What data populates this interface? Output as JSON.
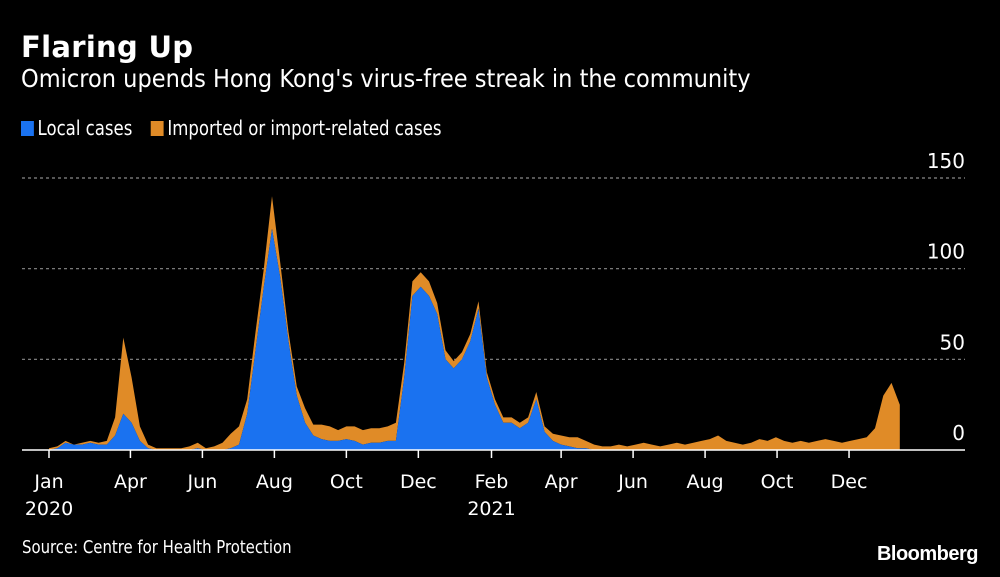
{
  "header": {
    "title": "Flaring Up",
    "subtitle": "Omicron upends Hong Kong's virus-free streak in the community"
  },
  "footer": {
    "source": "Source: Centre for Health Protection",
    "logo": "Bloomberg"
  },
  "colors": {
    "local": "#1a72f0",
    "imported": "#e08b27",
    "background": "#000000",
    "grid": "#8a8a8a"
  },
  "chart_data": {
    "type": "area",
    "stacked": true,
    "title": "Flaring Up",
    "subtitle": "Omicron upends Hong Kong's virus-free streak in the community",
    "x_start": "2020-01-23",
    "x_step_days": 7,
    "ylim": [
      0,
      150
    ],
    "yticks": [
      "0",
      "50",
      "100",
      "150"
    ],
    "ytick_values": [
      0,
      50,
      100,
      150
    ],
    "grid": true,
    "legend_position": "top-left",
    "xticks": [
      {
        "label": "Jan",
        "year": "2020",
        "day": 0
      },
      {
        "label": "Apr",
        "year": "",
        "day": 69
      },
      {
        "label": "Jun",
        "year": "",
        "day": 130
      },
      {
        "label": "Aug",
        "year": "",
        "day": 191
      },
      {
        "label": "Oct",
        "year": "",
        "day": 252
      },
      {
        "label": "Dec",
        "year": "",
        "day": 313
      },
      {
        "label": "Feb",
        "year": "2021",
        "day": 375
      },
      {
        "label": "Apr",
        "year": "",
        "day": 434
      },
      {
        "label": "Jun",
        "year": "",
        "day": 495
      },
      {
        "label": "Aug",
        "year": "",
        "day": 556
      },
      {
        "label": "Oct",
        "year": "",
        "day": 617
      },
      {
        "label": "Dec",
        "year": "",
        "day": 678
      }
    ],
    "series": [
      {
        "name": "Local cases",
        "values": [
          0,
          1,
          4,
          3,
          3,
          4,
          3,
          3,
          8,
          20,
          15,
          5,
          1,
          0,
          0,
          0,
          0,
          0,
          1,
          0,
          0,
          0,
          1,
          3,
          20,
          55,
          90,
          122,
          95,
          60,
          30,
          15,
          8,
          6,
          5,
          5,
          6,
          5,
          3,
          4,
          4,
          5,
          5,
          40,
          85,
          90,
          85,
          75,
          50,
          45,
          50,
          60,
          78,
          40,
          25,
          15,
          15,
          12,
          15,
          28,
          10,
          5,
          3,
          2,
          1,
          1,
          0,
          0,
          0,
          0,
          0,
          0,
          0,
          0,
          0,
          0,
          0,
          0,
          0,
          0,
          0,
          0,
          0,
          0,
          0,
          0,
          0,
          0,
          0,
          0,
          0,
          0,
          0,
          0,
          0,
          0,
          0,
          0,
          0,
          0,
          0,
          0,
          0,
          0
        ]
      },
      {
        "name": "Imported or import-related cases",
        "values": [
          1,
          1,
          1,
          0,
          1,
          1,
          1,
          2,
          10,
          42,
          25,
          8,
          2,
          1,
          1,
          1,
          1,
          2,
          3,
          1,
          2,
          4,
          8,
          10,
          8,
          10,
          10,
          18,
          8,
          5,
          5,
          8,
          6,
          8,
          8,
          6,
          7,
          8,
          8,
          8,
          8,
          8,
          10,
          8,
          8,
          8,
          8,
          6,
          5,
          4,
          4,
          4,
          4,
          3,
          3,
          3,
          3,
          3,
          3,
          4,
          3,
          4,
          5,
          5,
          6,
          4,
          3,
          2,
          2,
          3,
          2,
          3,
          4,
          3,
          2,
          3,
          4,
          3,
          4,
          5,
          6,
          8,
          5,
          4,
          3,
          4,
          6,
          5,
          7,
          5,
          4,
          5,
          4,
          5,
          6,
          5,
          4,
          5,
          6,
          7,
          12,
          30,
          37,
          25
        ]
      }
    ]
  }
}
